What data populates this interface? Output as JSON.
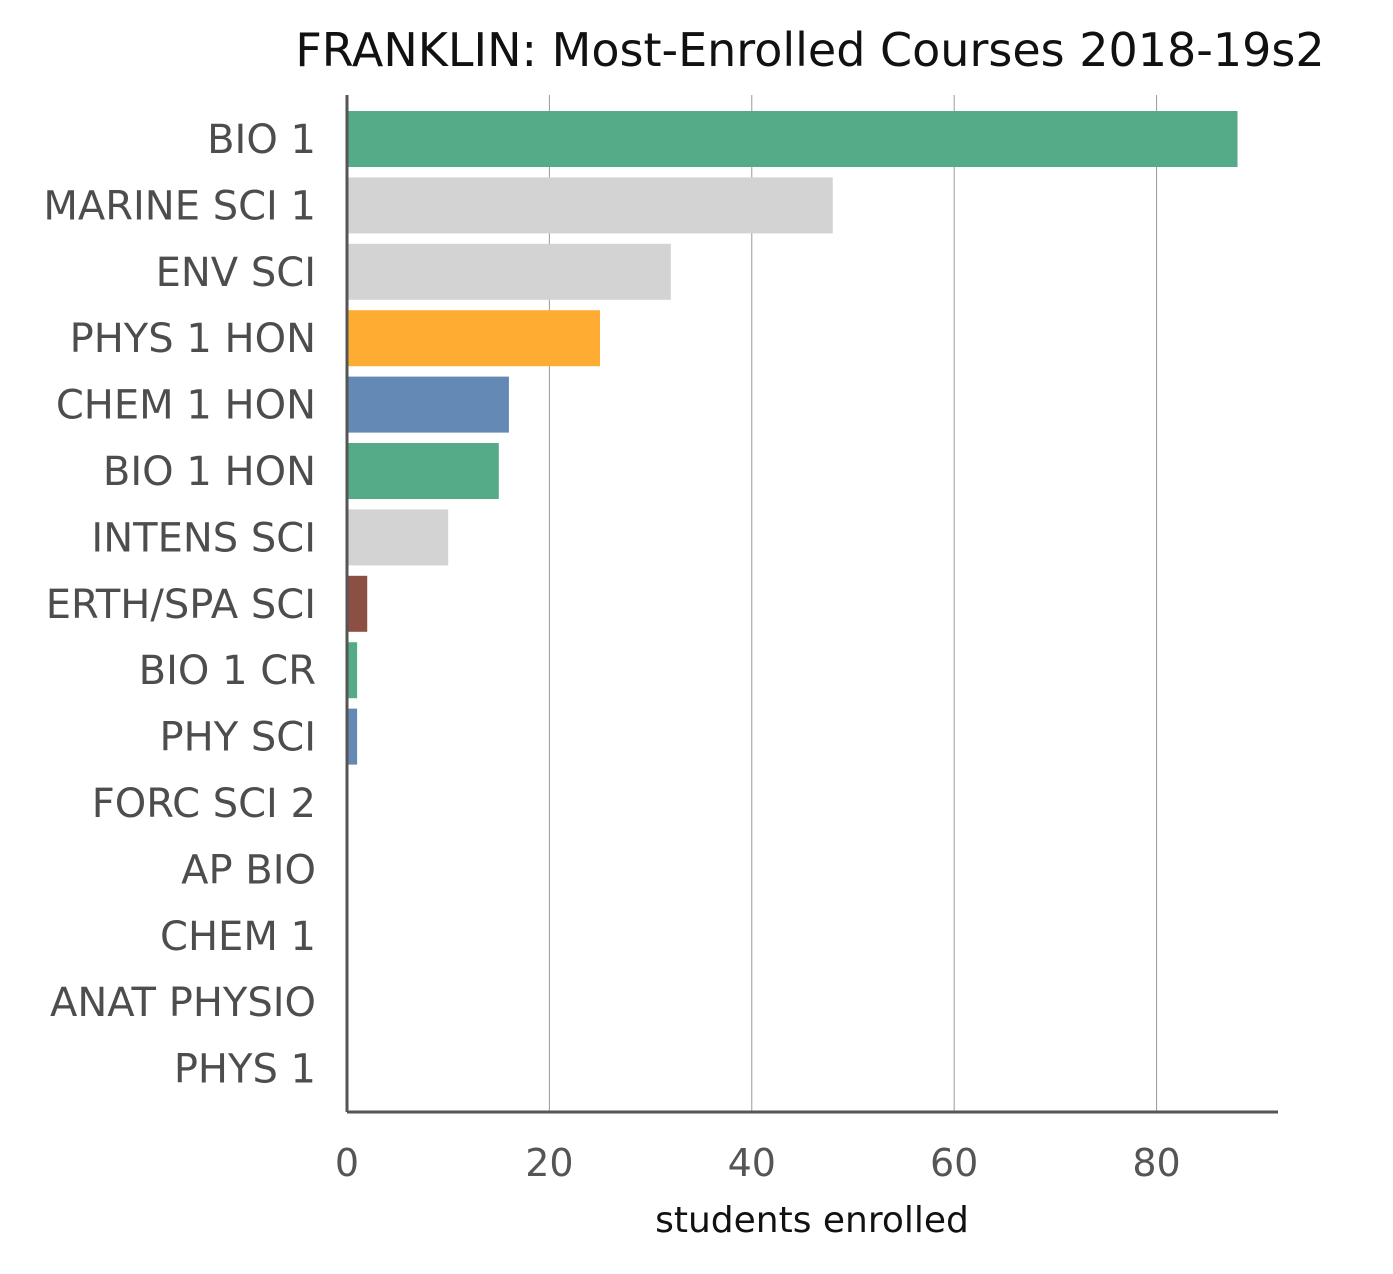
{
  "chart_data": {
    "type": "bar",
    "orientation": "horizontal",
    "title": "FRANKLIN: Most-Enrolled Courses 2018-19s2",
    "xlabel": "students enrolled",
    "ylabel": "",
    "xlim": [
      0,
      92
    ],
    "xticks": [
      0,
      20,
      40,
      60,
      80
    ],
    "grid": true,
    "categories": [
      "BIO 1",
      "MARINE SCI 1",
      "ENV SCI",
      "PHYS 1 HON",
      "CHEM 1 HON",
      "BIO 1 HON",
      "INTENS SCI",
      "ERTH/SPA SCI",
      "BIO 1 CR",
      "PHY SCI",
      "FORC SCI 2",
      "AP BIO",
      "CHEM 1",
      "ANAT PHYSIO",
      "PHYS 1"
    ],
    "values": [
      88,
      48,
      32,
      25,
      16,
      15,
      10,
      2,
      1,
      1,
      0,
      0,
      0,
      0,
      0
    ],
    "colors": [
      "#55ab87",
      "#d3d3d3",
      "#d3d3d3",
      "#ffac33",
      "#6489b5",
      "#55ab87",
      "#d3d3d3",
      "#8b5043",
      "#55ab87",
      "#6489b5",
      "#d3d3d3",
      "#d3d3d3",
      "#d3d3d3",
      "#d3d3d3",
      "#d3d3d3"
    ]
  }
}
